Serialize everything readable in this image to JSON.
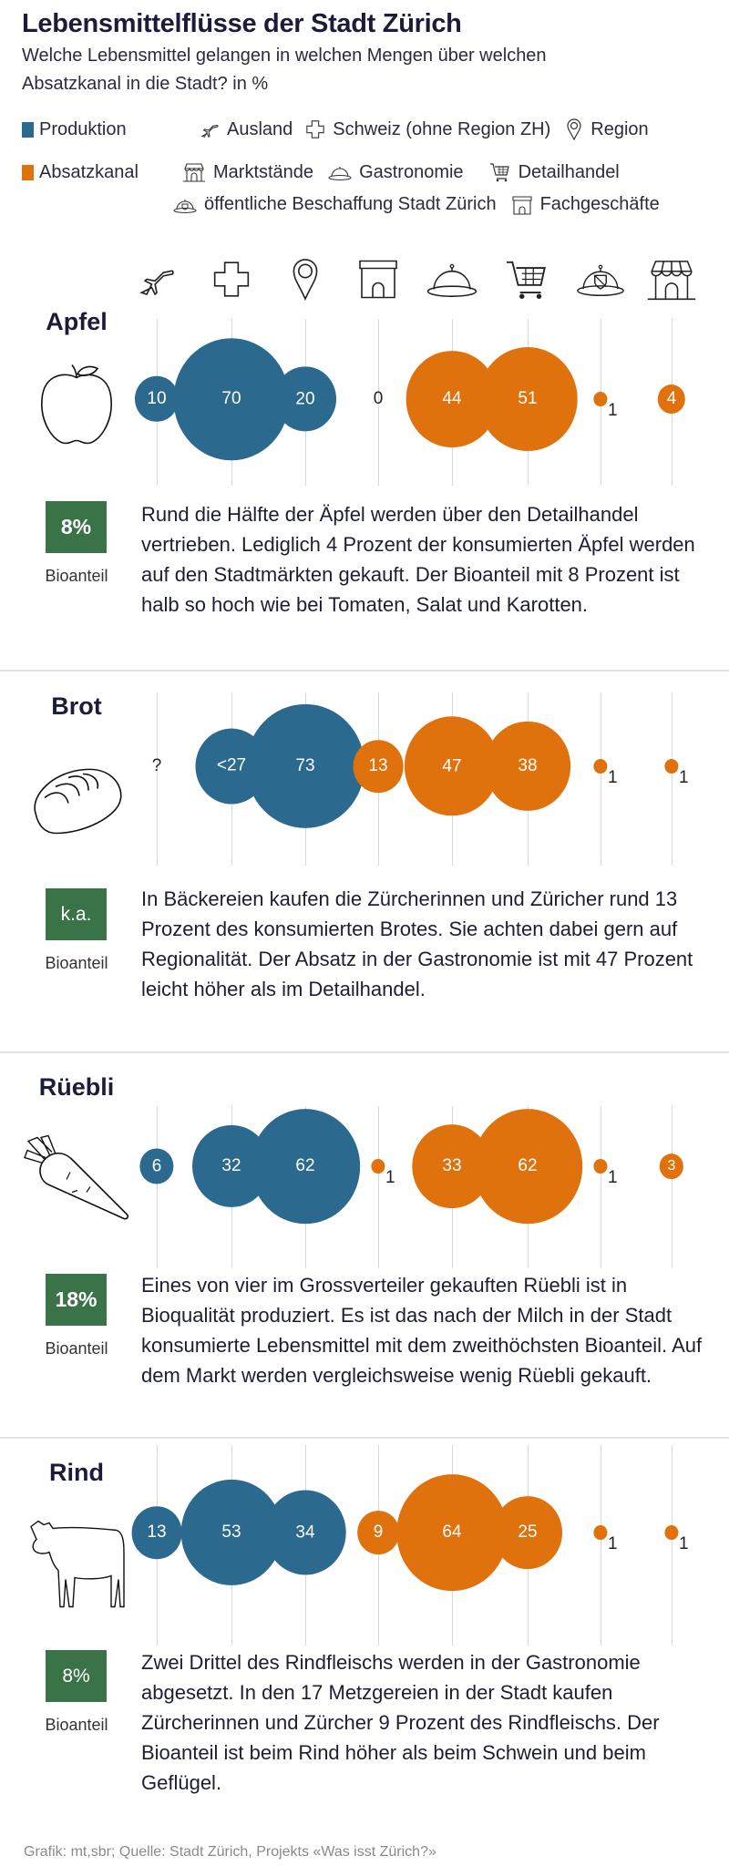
{
  "header": {
    "title": "Lebensmittelflüsse der Stadt Zürich",
    "subtitle_line1": "Welche Lebensmittel gelangen in welchen Mengen über welchen",
    "subtitle_line2": "Absatzkanal in die Stadt? in %"
  },
  "colors": {
    "produktion": "#2b6a8e",
    "absatzkanal": "#e0720d",
    "bio": "#3a7347"
  },
  "legend": {
    "produktion": {
      "label": "Produktion",
      "items": [
        {
          "icon": "airplane-icon",
          "label": "Ausland"
        },
        {
          "icon": "swiss-cross-icon",
          "label": "Schweiz (ohne Region ZH)"
        },
        {
          "icon": "map-pin-icon",
          "label": "Region"
        }
      ]
    },
    "absatzkanal": {
      "label": "Absatzkanal",
      "items": [
        {
          "icon": "market-stall-icon",
          "label": "Marktstände"
        },
        {
          "icon": "cloche-icon",
          "label": "Gastronomie"
        },
        {
          "icon": "shopping-cart-icon",
          "label": "Detailhandel"
        },
        {
          "icon": "cloche-shield-icon",
          "label": "öffentliche Beschaffung Stadt Zürich"
        },
        {
          "icon": "shop-icon",
          "label": "Fachgeschäfte"
        }
      ]
    }
  },
  "chart_data": {
    "type": "bubble-table",
    "title": "Lebensmittelflüsse der Stadt Zürich",
    "unit": "%",
    "columns": [
      {
        "key": "ausland",
        "group": "Produktion",
        "label": "Ausland",
        "icon": "airplane-icon"
      },
      {
        "key": "schweiz",
        "group": "Produktion",
        "label": "Schweiz (ohne Region ZH)",
        "icon": "swiss-cross-icon"
      },
      {
        "key": "region",
        "group": "Produktion",
        "label": "Region",
        "icon": "map-pin-icon"
      },
      {
        "key": "fachgeschaefte",
        "group": "Absatzkanal",
        "label": "Fachgeschäfte",
        "icon": "shop-icon"
      },
      {
        "key": "gastronomie",
        "group": "Absatzkanal",
        "label": "Gastronomie",
        "icon": "cloche-icon"
      },
      {
        "key": "detailhandel",
        "group": "Absatzkanal",
        "label": "Detailhandel",
        "icon": "shopping-cart-icon"
      },
      {
        "key": "beschaffung",
        "group": "Absatzkanal",
        "label": "öffentliche Beschaffung Stadt Zürich",
        "icon": "cloche-shield-icon"
      },
      {
        "key": "markt",
        "group": "Absatzkanal",
        "label": "Marktstände",
        "icon": "market-stall-icon"
      }
    ],
    "rows": [
      {
        "name": "Apfel",
        "icon": "apple-icon",
        "labels": [
          "10",
          "70",
          "20",
          "0",
          "44",
          "51",
          "1",
          "4"
        ],
        "values": [
          10,
          70,
          20,
          0,
          44,
          51,
          1,
          4
        ],
        "bioanteil": "8%",
        "bio_label": "Bioanteil",
        "text": "Rund die Hälfte der Äpfel werden über den Detailhandel vertrieben. Lediglich 4 Prozent der konsumierten Äpfel werden auf den Stadtmärkten gekauft. Der Bioanteil mit 8 Prozent ist halb so hoch wie bei Tomaten, Salat und Karotten."
      },
      {
        "name": "Brot",
        "icon": "bread-icon",
        "labels": [
          "?",
          "<27",
          "73",
          "13",
          "47",
          "38",
          "1",
          "1"
        ],
        "values": [
          null,
          27,
          73,
          13,
          47,
          38,
          1,
          1
        ],
        "bioanteil": "k.a.",
        "bio_label": "Bioanteil",
        "text": "In Bäckereien kaufen die Zürcherinnen und Züricher rund 13 Prozent des konsumierten Brotes. Sie achten dabei gern auf Regionalität. Der Absatz in der Gastronomie ist mit 47 Prozent leicht höher als im Detailhandel."
      },
      {
        "name": "Rüebli",
        "icon": "carrot-icon",
        "labels": [
          "6",
          "32",
          "62",
          "1",
          "33",
          "62",
          "1",
          "3"
        ],
        "values": [
          6,
          32,
          62,
          1,
          33,
          62,
          1,
          3
        ],
        "bioanteil": "18%",
        "bio_label": "Bioanteil",
        "text": "Eines von vier im Grossverteiler gekauften Rüebli ist in Bioqualität produziert. Es ist das nach der Milch in der Stadt konsumierte Lebensmittel mit dem zweithöchsten Bioanteil. Auf dem Markt werden vergleichsweise wenig Rüebli gekauft."
      },
      {
        "name": "Rind",
        "icon": "cow-icon",
        "labels": [
          "13",
          "53",
          "34",
          "9",
          "64",
          "25",
          "1",
          "1"
        ],
        "values": [
          13,
          53,
          34,
          9,
          64,
          25,
          1,
          1
        ],
        "bioanteil": "8%",
        "bio_label": "Bioanteil",
        "text": "Zwei Drittel des Rindfleischs werden in der Gastronomie abgesetzt. In den 17 Metzgereien in der Stadt kaufen Zürcherinnen und Zürcher 9 Prozent des Rindfleischs. Der Bioanteil ist beim Rind höher als beim Schwein und beim Geflügel."
      }
    ]
  },
  "footer": "Grafik: mt,sbr; Quelle: Stadt Zürich, Projekts «Was isst Zürich?»"
}
